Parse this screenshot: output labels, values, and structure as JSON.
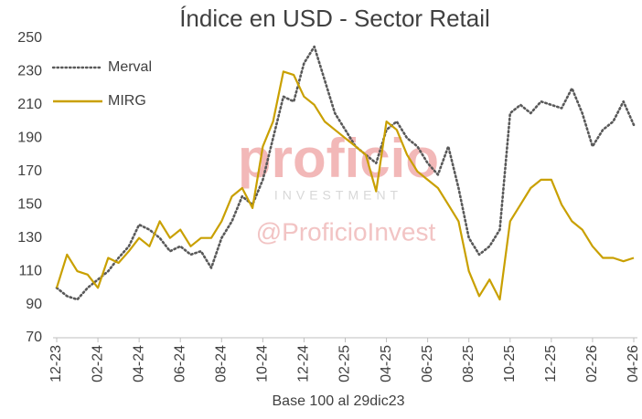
{
  "chart_data": {
    "type": "line",
    "title": "Índice en USD - Sector Retail",
    "x_label": "Base 100 al 29dic23",
    "watermark": [
      "proficio",
      "INVESTMENT",
      "@ProficioInvest"
    ],
    "categories": [
      "12-23",
      null,
      null,
      null,
      "02-24",
      null,
      null,
      null,
      "04-24",
      null,
      null,
      null,
      "06-24",
      null,
      null,
      null,
      "08-24",
      null,
      null,
      null,
      "10-24",
      null,
      null,
      null,
      "12-24",
      null,
      null,
      null,
      "02-25",
      null,
      null,
      null,
      "04-25",
      null,
      null,
      null,
      "06-25",
      null,
      null,
      null,
      "08-25",
      null,
      null,
      null,
      "10-25",
      null,
      null,
      null,
      "12-25",
      null,
      null,
      null,
      "02-26",
      null,
      null,
      null,
      "04-26"
    ],
    "series": [
      {
        "name": "Merval",
        "color": "#595959",
        "dash": "dotted",
        "values": [
          100,
          95,
          93,
          100,
          105,
          110,
          118,
          125,
          138,
          135,
          130,
          122,
          125,
          120,
          122,
          112,
          130,
          140,
          155,
          150,
          165,
          190,
          215,
          212,
          235,
          245,
          225,
          205,
          195,
          185,
          180,
          175,
          195,
          200,
          190,
          185,
          175,
          168,
          185,
          160,
          130,
          120,
          125,
          135,
          205,
          210,
          205,
          212,
          210,
          208,
          220,
          205,
          185,
          195,
          200,
          212,
          198
        ]
      },
      {
        "name": "MIRG",
        "color": "#c9a000",
        "dash": "solid",
        "values": [
          100,
          120,
          110,
          108,
          100,
          118,
          115,
          122,
          130,
          125,
          140,
          130,
          135,
          125,
          130,
          130,
          140,
          155,
          160,
          148,
          185,
          200,
          230,
          228,
          215,
          210,
          200,
          195,
          190,
          185,
          180,
          158,
          200,
          195,
          180,
          170,
          165,
          160,
          150,
          140,
          110,
          95,
          105,
          93,
          140,
          150,
          160,
          165,
          165,
          150,
          140,
          135,
          125,
          118,
          118,
          116,
          118
        ]
      }
    ],
    "ylim": [
      70,
      250
    ],
    "yticks": [
      70,
      90,
      110,
      130,
      150,
      170,
      190,
      210,
      230,
      250
    ],
    "grid": false,
    "legend": "top-left"
  }
}
